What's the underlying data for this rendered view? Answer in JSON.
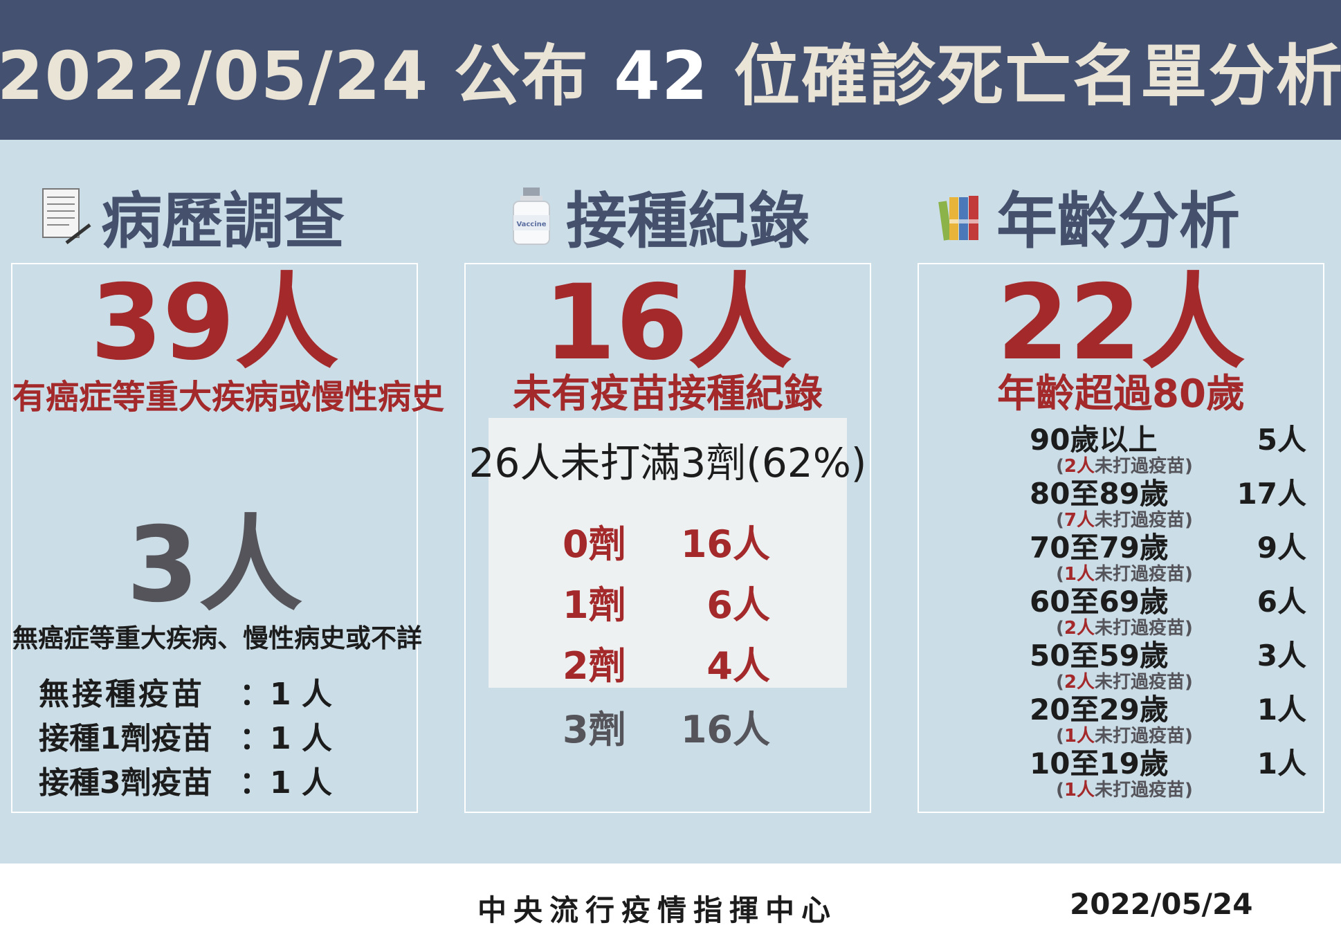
{
  "header": {
    "title_prefix": "2022/05/24 公布 ",
    "title_num": "42",
    "title_suffix": " 位確診死亡名單分析"
  },
  "sections": {
    "history": {
      "title": "病歷調查",
      "main_count": "39人",
      "main_desc": "有癌症等重大疾病或慢性病史",
      "sub_count": "3人",
      "sub_desc": "無癌症等重大疾病、慢性病史或不詳",
      "rows": [
        {
          "label": "無接種疫苗",
          "value": "：1 人"
        },
        {
          "label": "接種1劑疫苗",
          "value": "：1 人"
        },
        {
          "label": "接種3劑疫苗",
          "value": "：1 人"
        }
      ]
    },
    "vaccination": {
      "title": "接種紀錄",
      "icon_label": "Vaccine",
      "main_count": "16人",
      "main_desc": "未有疫苗接種紀錄",
      "summary": "26人未打滿3劑(62%)",
      "doses": [
        {
          "dose": "0劑",
          "count": "16人"
        },
        {
          "dose": "1劑",
          "count": "6人"
        },
        {
          "dose": "2劑",
          "count": "4人"
        },
        {
          "dose": "3劑",
          "count": "16人"
        }
      ]
    },
    "age": {
      "title": "年齡分析",
      "main_count": "22人",
      "main_desc": "年齡超過80歲",
      "groups": [
        {
          "range": "90歲以上",
          "count": "5人",
          "unvax_num": "2人",
          "unvax_text": "未打過疫苗"
        },
        {
          "range": "80至89歲",
          "count": "17人",
          "unvax_num": "7人",
          "unvax_text": "未打過疫苗"
        },
        {
          "range": "70至79歲",
          "count": "9人",
          "unvax_num": "1人",
          "unvax_text": "未打過疫苗"
        },
        {
          "range": "60至69歲",
          "count": "6人",
          "unvax_num": "2人",
          "unvax_text": "未打過疫苗"
        },
        {
          "range": "50至59歲",
          "count": "3人",
          "unvax_num": "2人",
          "unvax_text": "未打過疫苗"
        },
        {
          "range": "20至29歲",
          "count": "1人",
          "unvax_num": "1人",
          "unvax_text": "未打過疫苗"
        },
        {
          "range": "10至19歲",
          "count": "1人",
          "unvax_num": "1人",
          "unvax_text": "未打過疫苗"
        }
      ]
    }
  },
  "footer": {
    "org": "中央流行疫情指揮中心",
    "date": "2022/05/24"
  }
}
